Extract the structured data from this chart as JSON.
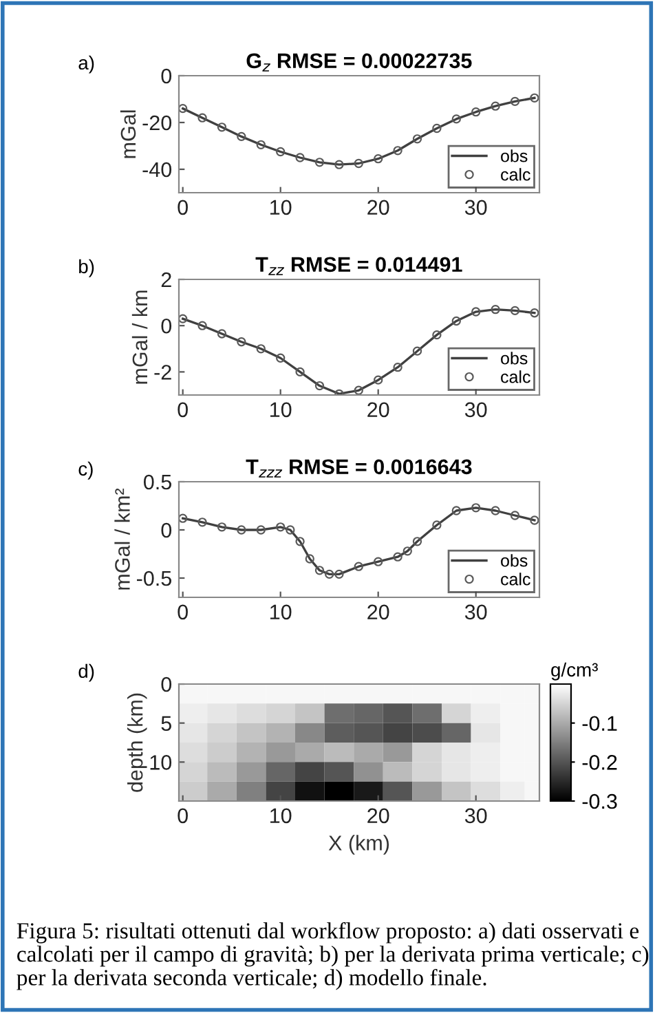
{
  "chart_data": [
    {
      "type": "line",
      "title": "G$_{z}$ RMSE = 0.00022735",
      "ylabel": "mGal",
      "annotations": [
        "a)"
      ],
      "x": [
        0,
        2,
        4,
        6,
        8,
        10,
        12,
        14,
        16,
        18,
        20,
        22,
        24,
        26,
        28,
        30,
        32,
        34,
        36
      ],
      "series": [
        {
          "name": "obs",
          "type": "line",
          "color": "#404040",
          "line_style": "solid",
          "values": [
            -14,
            -18,
            -22,
            -26,
            -29.5,
            -32.5,
            -35,
            -37,
            -38,
            -37.5,
            -35.5,
            -32,
            -27,
            -22.5,
            -18.5,
            -15.5,
            -13,
            -11,
            -9.5
          ]
        },
        {
          "name": "calc",
          "type": "scatter",
          "color": "#595959",
          "marker": "circle",
          "values": [
            -14,
            -18,
            -22,
            -26,
            -29.5,
            -32.5,
            -35,
            -37,
            -38,
            -37.5,
            -35.5,
            -32,
            -27,
            -22.5,
            -18.5,
            -15.5,
            -13,
            -11,
            -9.5
          ]
        }
      ],
      "xlim": [
        -0.4,
        36.5
      ],
      "xticks": [
        0,
        10,
        20,
        30
      ],
      "ylim": [
        -50,
        0
      ],
      "yticks": [
        -40,
        -20,
        0
      ],
      "legend": "bottom right",
      "grid": false
    },
    {
      "type": "line",
      "title": "T$_{zz}$ RMSE = 0.014491",
      "ylabel": "mGal / km",
      "annotations": [
        "b)"
      ],
      "x": [
        0,
        2,
        4,
        6,
        8,
        10,
        12,
        14,
        16,
        18,
        20,
        22,
        24,
        26,
        28,
        30,
        32,
        34,
        36
      ],
      "series": [
        {
          "name": "obs",
          "type": "line",
          "color": "#404040",
          "line_style": "solid",
          "values": [
            0.3,
            0,
            -0.35,
            -0.7,
            -1.0,
            -1.4,
            -2.0,
            -2.6,
            -2.95,
            -2.8,
            -2.35,
            -1.8,
            -1.1,
            -0.4,
            0.2,
            0.6,
            0.7,
            0.65,
            0.55
          ]
        },
        {
          "name": "calc",
          "type": "scatter",
          "color": "#595959",
          "marker": "circle",
          "values": [
            0.3,
            0,
            -0.35,
            -0.7,
            -1.0,
            -1.4,
            -2.0,
            -2.6,
            -2.95,
            -2.8,
            -2.35,
            -1.8,
            -1.1,
            -0.4,
            0.2,
            0.6,
            0.7,
            0.65,
            0.55
          ]
        }
      ],
      "xlim": [
        -0.4,
        36.5
      ],
      "xticks": [
        0,
        10,
        20,
        30
      ],
      "ylim": [
        -3,
        2
      ],
      "yticks": [
        -2,
        0,
        2
      ],
      "legend": "bottom right",
      "grid": false
    },
    {
      "type": "line",
      "title": "T$_{zzz}$ RMSE = 0.0016643",
      "ylabel": "mGal / km²",
      "annotations": [
        "c)"
      ],
      "x": [
        0,
        2,
        4,
        6,
        8,
        10,
        11,
        12,
        13,
        14,
        15,
        16,
        18,
        20,
        22,
        23,
        24,
        26,
        28,
        30,
        32,
        34,
        36
      ],
      "series": [
        {
          "name": "obs",
          "type": "line",
          "color": "#404040",
          "line_style": "solid",
          "values": [
            0.12,
            0.08,
            0.03,
            0.0,
            0.0,
            0.03,
            0.0,
            -0.12,
            -0.3,
            -0.42,
            -0.46,
            -0.46,
            -0.38,
            -0.33,
            -0.28,
            -0.22,
            -0.12,
            0.05,
            0.2,
            0.23,
            0.2,
            0.15,
            0.1
          ]
        },
        {
          "name": "calc",
          "type": "scatter",
          "color": "#595959",
          "marker": "circle",
          "values": [
            0.12,
            0.08,
            0.03,
            0.0,
            0.0,
            0.03,
            0.0,
            -0.12,
            -0.3,
            -0.42,
            -0.46,
            -0.46,
            -0.38,
            -0.33,
            -0.28,
            -0.22,
            -0.12,
            0.05,
            0.2,
            0.23,
            0.2,
            0.15,
            0.1
          ]
        }
      ],
      "xlim": [
        -0.4,
        36.5
      ],
      "xticks": [
        0,
        10,
        20,
        30
      ],
      "ylim": [
        -0.7,
        0.5
      ],
      "yticks": [
        -0.5,
        0,
        0.5
      ],
      "legend": "bottom right",
      "grid": false
    },
    {
      "type": "heatmap",
      "xlabel": "X (km)",
      "ylabel": "depth (km)",
      "clabel": "g/cm³",
      "annotations": [
        "d)",
        "Figura 5: risultati ottenuti dal workflow proposto: a) dati osservati e calcolati per il campo di gravità; b) per la derivata prima verticale; c) per la derivata seconda verticale; d) modello finale."
      ],
      "x": [
        1,
        4,
        7,
        10,
        13,
        16,
        19,
        22,
        25,
        28,
        31,
        34,
        36
      ],
      "y": [
        1.25,
        3.75,
        6.25,
        8.75,
        11.25,
        13.75
      ],
      "cells": [
        [
          -0.01,
          -0.01,
          -0.01,
          -0.01,
          -0.01,
          -0.01,
          -0.01,
          -0.01,
          -0.01,
          -0.01,
          -0.01,
          -0.01,
          -0.01
        ],
        [
          -0.02,
          -0.03,
          -0.04,
          -0.05,
          -0.07,
          -0.17,
          -0.18,
          -0.2,
          -0.17,
          -0.05,
          -0.02,
          -0.01,
          -0.01
        ],
        [
          -0.03,
          -0.05,
          -0.07,
          -0.09,
          -0.14,
          -0.19,
          -0.2,
          -0.22,
          -0.21,
          -0.18,
          -0.03,
          -0.01,
          -0.01
        ],
        [
          -0.04,
          -0.06,
          -0.09,
          -0.12,
          -0.1,
          -0.08,
          -0.1,
          -0.12,
          -0.05,
          -0.03,
          -0.02,
          -0.01,
          -0.01
        ],
        [
          -0.05,
          -0.08,
          -0.12,
          -0.18,
          -0.22,
          -0.2,
          -0.13,
          -0.08,
          -0.05,
          -0.03,
          -0.02,
          -0.01,
          -0.01
        ],
        [
          -0.06,
          -0.1,
          -0.15,
          -0.22,
          -0.28,
          -0.3,
          -0.27,
          -0.2,
          -0.12,
          -0.07,
          -0.04,
          -0.02,
          -0.01
        ]
      ],
      "xlim": [
        -0.4,
        36.5
      ],
      "xticks": [
        0,
        10,
        20,
        30
      ],
      "ylim": [
        15,
        0
      ],
      "yticks": [
        0,
        5,
        10
      ],
      "clim": [
        -0.3,
        0
      ],
      "cticks": [
        -0.3,
        -0.2,
        -0.1
      ]
    }
  ]
}
